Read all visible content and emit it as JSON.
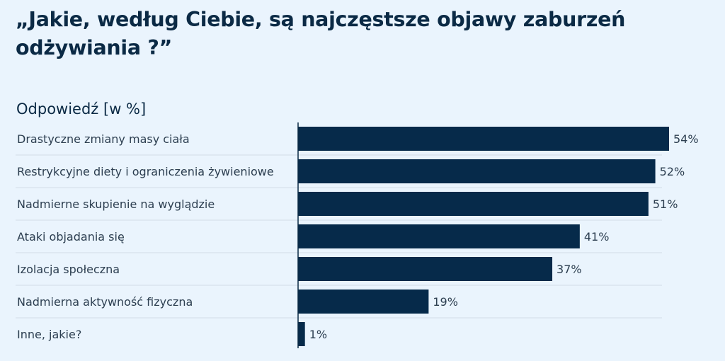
{
  "title": "„Jakie, według Ciebie, są najczęstsze objawy zaburzeń odżywiania ?”",
  "colors": {
    "background": "#eaf4fd",
    "bar": "#062a4a",
    "text": "#2c3e50",
    "title": "#0b2a45",
    "separator": "#d3dde7",
    "axis": "#0b2a45"
  },
  "chart_data": {
    "type": "bar",
    "orientation": "horizontal",
    "title": "„Jakie, według Ciebie, są najczęstsze objawy zaburzeń odżywiania ?”",
    "ylabel": "Odpowiedź [w %]",
    "categories": [
      "Drastyczne zmiany masy ciała",
      "Restrykcyjne diety  i ograniczenia żywieniowe",
      "Nadmierne skupienie na wyglądzie",
      "Ataki objadania się",
      "Izolacja społeczna",
      "Nadmierna aktywność fizyczna",
      "Inne, jakie?"
    ],
    "values": [
      54,
      52,
      51,
      41,
      37,
      19,
      1
    ],
    "value_labels": [
      "54%",
      "52%",
      "51%",
      "41%",
      "37%",
      "19%",
      "1%"
    ],
    "xlim": [
      0,
      54
    ],
    "grid": false
  }
}
